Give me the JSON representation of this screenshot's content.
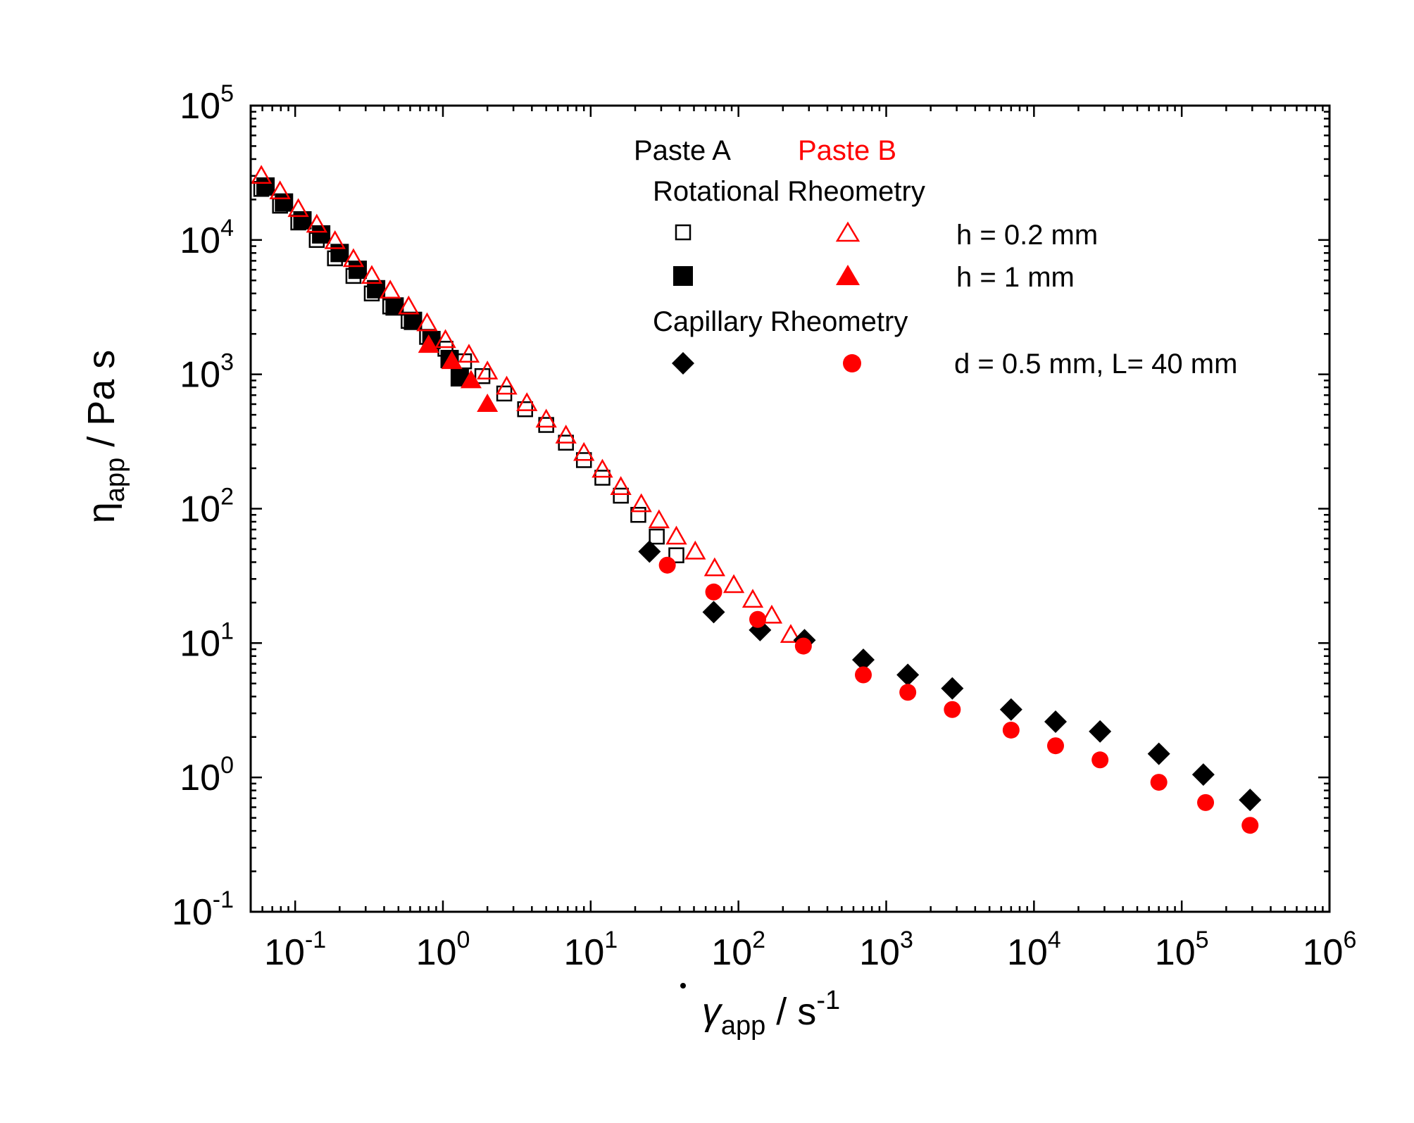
{
  "chart_data": {
    "type": "scatter",
    "xscale": "log",
    "yscale": "log",
    "xlim": [
      0.05,
      1000000
    ],
    "ylim": [
      0.1,
      100000
    ],
    "xlabel": {
      "symbol": "γ",
      "subscript": "app",
      "unit": " / s",
      "superscript": "-1"
    },
    "ylabel": {
      "symbol": "η",
      "subscript": "app",
      "unit": " / Pa s"
    },
    "xticks": [
      {
        "base": "10",
        "exp": "-1",
        "value": 0.1
      },
      {
        "base": "10",
        "exp": "0",
        "value": 1
      },
      {
        "base": "10",
        "exp": "1",
        "value": 10
      },
      {
        "base": "10",
        "exp": "2",
        "value": 100
      },
      {
        "base": "10",
        "exp": "3",
        "value": 1000
      },
      {
        "base": "10",
        "exp": "4",
        "value": 10000
      },
      {
        "base": "10",
        "exp": "5",
        "value": 100000
      },
      {
        "base": "10",
        "exp": "6",
        "value": 1000000
      }
    ],
    "yticks": [
      {
        "base": "10",
        "exp": "-1",
        "value": 0.1
      },
      {
        "base": "10",
        "exp": "0",
        "value": 1
      },
      {
        "base": "10",
        "exp": "1",
        "value": 10
      },
      {
        "base": "10",
        "exp": "2",
        "value": 100
      },
      {
        "base": "10",
        "exp": "3",
        "value": 1000
      },
      {
        "base": "10",
        "exp": "4",
        "value": 10000
      },
      {
        "base": "10",
        "exp": "5",
        "value": 100000
      }
    ],
    "legend": {
      "position": "top-right",
      "paste_a": "Paste A",
      "paste_b": "Paste B",
      "rotational": "Rotational Rheometry",
      "capillary": "Capillary Rheometry",
      "h02": "h = 0.2 mm",
      "h1": "h = 1 mm",
      "cap": "d = 0.5 mm, L= 40 mm"
    },
    "series": [
      {
        "name": "Paste A, Rotational, h = 0.2 mm",
        "marker": "square-open",
        "color": "#000000",
        "x": [
          0.059,
          0.079,
          0.105,
          0.14,
          0.186,
          0.248,
          0.33,
          0.44,
          0.586,
          0.781,
          1.04,
          1.39,
          1.85,
          2.6,
          3.6,
          5.0,
          6.8,
          9.0,
          12.0,
          16.0,
          21.0,
          28.0,
          38.0
        ],
        "y": [
          24000,
          18000,
          13500,
          10000,
          7300,
          5400,
          4000,
          3200,
          2500,
          1900,
          1550,
          1250,
          970,
          720,
          550,
          420,
          310,
          230,
          170,
          125,
          90,
          62,
          45
        ]
      },
      {
        "name": "Paste A, Rotational, h = 1 mm",
        "marker": "square-filled",
        "color": "#000000",
        "x": [
          0.063,
          0.084,
          0.112,
          0.15,
          0.2,
          0.265,
          0.353,
          0.471,
          0.627,
          0.836,
          1.11,
          1.3
        ],
        "y": [
          25000,
          19000,
          14000,
          11000,
          8000,
          6000,
          4300,
          3200,
          2500,
          1800,
          1300,
          950
        ]
      },
      {
        "name": "Paste B, Rotational, h = 0.2 mm",
        "marker": "triangle-open",
        "color": "#ff0000",
        "x": [
          0.059,
          0.079,
          0.105,
          0.14,
          0.186,
          0.248,
          0.33,
          0.44,
          0.586,
          0.781,
          1.04,
          1.5,
          2.0,
          2.7,
          3.7,
          5.0,
          6.8,
          9.0,
          12.0,
          16.0,
          22.0,
          29.0,
          38.0,
          51.0,
          69.0,
          93.0,
          125.0,
          168.0,
          226.0
        ],
        "y": [
          30000,
          23000,
          17000,
          13000,
          9800,
          7200,
          5400,
          4200,
          3200,
          2400,
          1800,
          1400,
          1050,
          810,
          610,
          460,
          350,
          260,
          195,
          145,
          108,
          82,
          62,
          48,
          36,
          27,
          21,
          16,
          11.5
        ]
      },
      {
        "name": "Paste B, Rotational, h = 1 mm",
        "marker": "triangle-filled",
        "color": "#ff0000",
        "x": [
          0.8,
          1.15,
          1.55,
          2.0
        ],
        "y": [
          1650,
          1250,
          900,
          600
        ]
      },
      {
        "name": "Paste A, Capillary",
        "marker": "diamond-filled",
        "color": "#000000",
        "x": [
          25.0,
          68.0,
          140.0,
          280.0,
          700.0,
          1400.0,
          2800.0,
          7000.0,
          14000.0,
          28000.0,
          70000.0,
          140000.0,
          290000.0
        ],
        "y": [
          48,
          17,
          12.5,
          10.5,
          7.5,
          5.8,
          4.6,
          3.2,
          2.6,
          2.2,
          1.5,
          1.05,
          0.68
        ]
      },
      {
        "name": "Paste B, Capillary",
        "marker": "circle-filled",
        "color": "#ff0000",
        "x": [
          33.0,
          68.0,
          135.0,
          275.0,
          700.0,
          1400.0,
          2800.0,
          7000.0,
          14000.0,
          28000.0,
          70000.0,
          145000.0,
          290000.0
        ],
        "y": [
          38,
          24,
          15,
          9.5,
          5.8,
          4.3,
          3.2,
          2.25,
          1.72,
          1.35,
          0.92,
          0.65,
          0.44
        ]
      }
    ]
  }
}
